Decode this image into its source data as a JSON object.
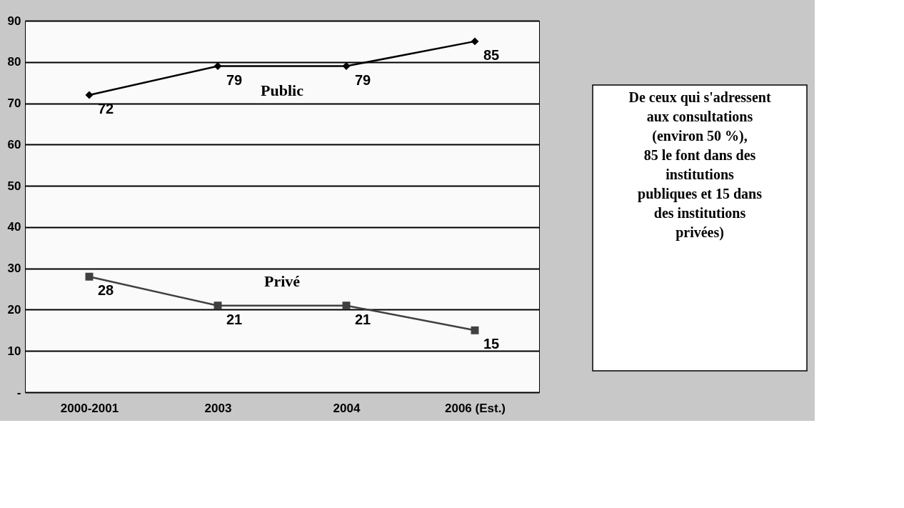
{
  "chart_data": {
    "type": "line",
    "categories": [
      "2000-2001",
      "2003",
      "2004",
      "2006 (Est.)"
    ],
    "series": [
      {
        "name": "Public",
        "color": "#000000",
        "marker": "diamond",
        "values": [
          72,
          79,
          79,
          85
        ]
      },
      {
        "name": "Privé",
        "color": "#404040",
        "marker": "square",
        "values": [
          28,
          21,
          21,
          15
        ]
      }
    ],
    "ylim": [
      0,
      90
    ],
    "yticks": [
      {
        "value": 0,
        "label": "-"
      },
      10,
      20,
      30,
      40,
      50,
      60,
      70,
      80,
      90
    ],
    "grid": "y",
    "data_labels": true,
    "annotations": [
      "De ceux qui s'adressent\naux consultations\n(environ 50 %),\n85 le font dans des\ninstitutions\npubliques et 15 dans\ndes institutions\nprivées)"
    ]
  }
}
